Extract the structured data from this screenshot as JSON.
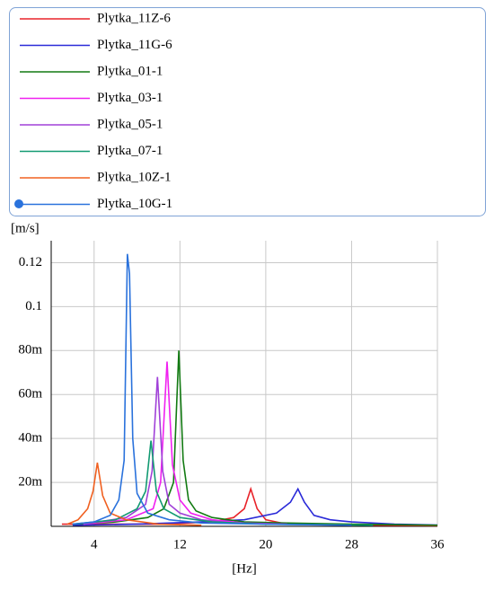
{
  "chart_data": {
    "type": "line",
    "x_label": "[Hz]",
    "y_label": "[m/s]",
    "xlim": [
      0,
      36
    ],
    "xticks": [
      4,
      12,
      20,
      28,
      36
    ],
    "ylim": [
      0,
      0.13
    ],
    "yticks": [
      {
        "value": 0.02,
        "label": "20m"
      },
      {
        "value": 0.04,
        "label": "40m"
      },
      {
        "value": 0.06,
        "label": "60m"
      },
      {
        "value": 0.08,
        "label": "80m"
      },
      0.1,
      0.12
    ],
    "grid": true,
    "series": [
      {
        "name": "Plytka_11Z-6",
        "color": "#e8232a",
        "x": [
          1,
          5,
          10,
          15,
          17,
          18,
          18.6,
          19.2,
          20,
          22,
          26,
          30,
          36
        ],
        "values": [
          0.001,
          0.001,
          0.001,
          0.002,
          0.004,
          0.008,
          0.017,
          0.008,
          0.003,
          0.001,
          0.001,
          0.0005,
          0.0003
        ]
      },
      {
        "name": "Plytka_11G-6",
        "color": "#2a2ad8",
        "x": [
          2,
          8,
          14,
          18,
          21,
          22.3,
          23,
          23.6,
          24.5,
          26,
          28,
          32,
          36
        ],
        "values": [
          0.0005,
          0.001,
          0.002,
          0.003,
          0.006,
          0.011,
          0.017,
          0.011,
          0.005,
          0.003,
          0.002,
          0.001,
          0.0006
        ]
      },
      {
        "name": "Plytka_01-1",
        "color": "#127a12",
        "x": [
          2,
          6,
          9,
          10.5,
          11.4,
          11.9,
          12.3,
          12.8,
          13.5,
          15,
          18,
          22,
          28,
          36
        ],
        "values": [
          0.001,
          0.002,
          0.004,
          0.008,
          0.02,
          0.08,
          0.03,
          0.012,
          0.007,
          0.004,
          0.002,
          0.0015,
          0.001,
          0.0005
        ]
      },
      {
        "name": "Plytka_03-1",
        "color": "#f020f0",
        "x": [
          3,
          7,
          9.5,
          10.2,
          10.8,
          11.3,
          12,
          13,
          15,
          18,
          22
        ],
        "values": [
          0.001,
          0.003,
          0.008,
          0.02,
          0.075,
          0.028,
          0.012,
          0.006,
          0.003,
          0.0015,
          0.001
        ]
      },
      {
        "name": "Plytka_05-1",
        "color": "#a040d8",
        "x": [
          3,
          7,
          8.8,
          9.4,
          9.9,
          10.4,
          11,
          12,
          14,
          17
        ],
        "values": [
          0.001,
          0.004,
          0.01,
          0.025,
          0.068,
          0.025,
          0.01,
          0.006,
          0.003,
          0.0015
        ]
      },
      {
        "name": "Plytka_07-1",
        "color": "#129a72",
        "x": [
          2,
          6,
          8,
          8.8,
          9.3,
          9.8,
          10.5,
          12,
          15,
          20,
          30
        ],
        "values": [
          0.001,
          0.003,
          0.008,
          0.016,
          0.039,
          0.016,
          0.008,
          0.004,
          0.002,
          0.001,
          0.0005
        ]
      },
      {
        "name": "Plytka_10Z-1",
        "color": "#f06020",
        "x": [
          1.5,
          2.5,
          3.4,
          3.9,
          4.3,
          4.8,
          5.5,
          7,
          10,
          14
        ],
        "values": [
          0.001,
          0.003,
          0.008,
          0.016,
          0.029,
          0.014,
          0.006,
          0.003,
          0.001,
          0.0005
        ]
      },
      {
        "name": "Plytka_10G-1",
        "color": "#2a72dc",
        "x": [
          2,
          4,
          5.5,
          6.3,
          6.8,
          7.1,
          7.3,
          7.6,
          8,
          9,
          11,
          14,
          20,
          28
        ],
        "values": [
          0.001,
          0.002,
          0.005,
          0.012,
          0.03,
          0.124,
          0.115,
          0.04,
          0.015,
          0.006,
          0.003,
          0.0015,
          0.001,
          0.0005
        ]
      }
    ]
  }
}
